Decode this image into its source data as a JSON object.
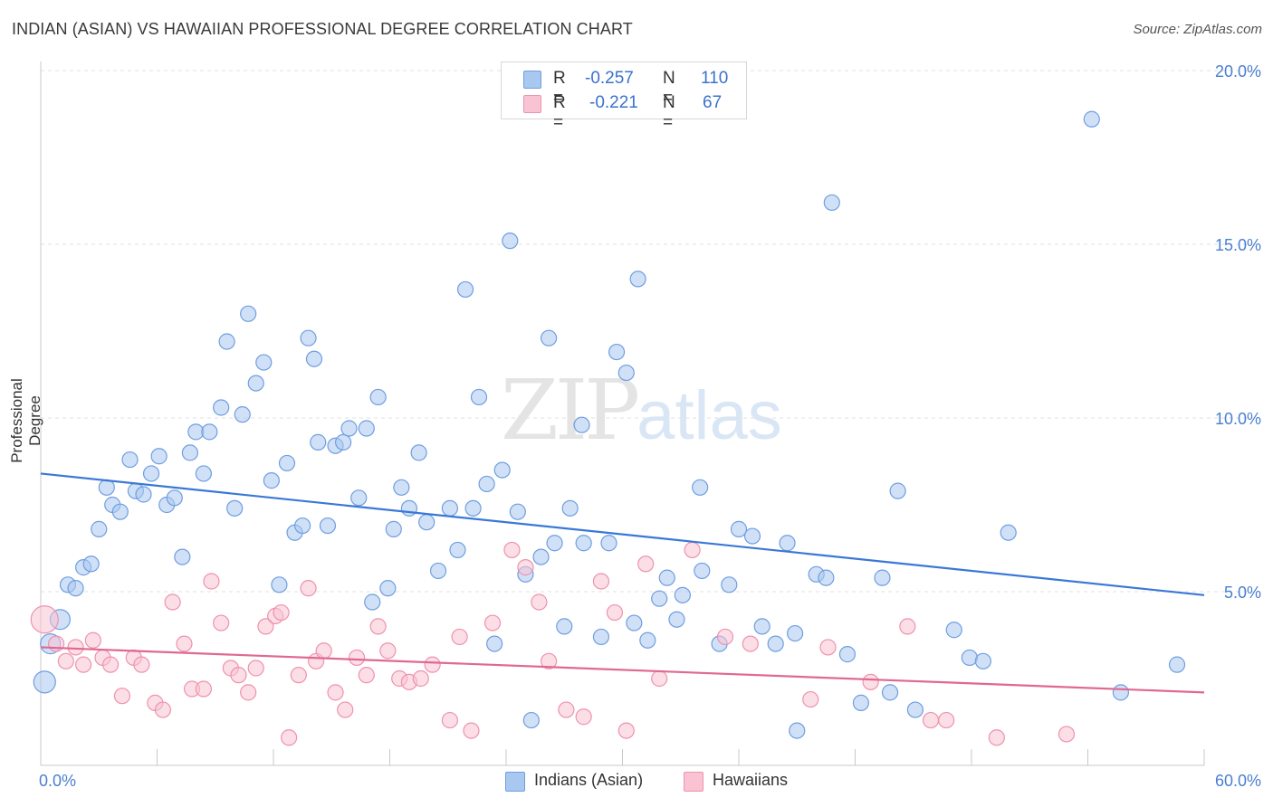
{
  "title": "INDIAN (ASIAN) VS HAWAIIAN PROFESSIONAL DEGREE CORRELATION CHART",
  "source": "Source: ZipAtlas.com",
  "watermark": {
    "zip": "ZIP",
    "atlas": "atlas"
  },
  "legend": {
    "r_label": "R =",
    "n_label": "N =",
    "rows": [
      {
        "r": "-0.257",
        "n": "110",
        "color": "#a9c8f0",
        "border": "#6f9ee0"
      },
      {
        "r": "-0.221",
        "n": "67",
        "color": "#f9c3d3",
        "border": "#ee92ae"
      }
    ]
  },
  "bottom_legend": [
    {
      "label": "Indians (Asian)",
      "color": "#a9c8f0",
      "border": "#6f9ee0"
    },
    {
      "label": "Hawaiians",
      "color": "#f9c3d3",
      "border": "#ee92ae"
    }
  ],
  "chart_data": {
    "type": "scatter",
    "title": "INDIAN (ASIAN) VS HAWAIIAN PROFESSIONAL DEGREE CORRELATION CHART",
    "xlabel": "",
    "ylabel": "Professional Degree",
    "xlim": [
      0,
      60
    ],
    "ylim": [
      0,
      20
    ],
    "x_tick_labels": [
      "0.0%",
      "60.0%"
    ],
    "y_ticks": [
      5,
      10,
      15,
      20
    ],
    "y_tick_labels": [
      "5.0%",
      "10.0%",
      "15.0%",
      "20.0%"
    ],
    "grid": true,
    "series": [
      {
        "name": "Indians (Asian)",
        "color": "#6f9ee0",
        "fill": "#a9c8f0",
        "trend": {
          "x": [
            0,
            60
          ],
          "y": [
            8.4,
            4.9
          ],
          "color": "#3a78d6"
        },
        "points": [
          [
            0.2,
            2.4
          ],
          [
            0.5,
            3.5
          ],
          [
            1.0,
            4.2
          ],
          [
            1.4,
            5.2
          ],
          [
            1.8,
            5.1
          ],
          [
            2.2,
            5.7
          ],
          [
            2.6,
            5.8
          ],
          [
            3.0,
            6.8
          ],
          [
            3.4,
            8.0
          ],
          [
            3.7,
            7.5
          ],
          [
            4.1,
            7.3
          ],
          [
            4.6,
            8.8
          ],
          [
            4.9,
            7.9
          ],
          [
            5.3,
            7.8
          ],
          [
            5.7,
            8.4
          ],
          [
            6.1,
            8.9
          ],
          [
            6.5,
            7.5
          ],
          [
            6.9,
            7.7
          ],
          [
            7.3,
            6.0
          ],
          [
            7.7,
            9.0
          ],
          [
            8.0,
            9.6
          ],
          [
            8.4,
            8.4
          ],
          [
            8.7,
            9.6
          ],
          [
            9.3,
            10.3
          ],
          [
            9.6,
            12.2
          ],
          [
            10.0,
            7.4
          ],
          [
            10.4,
            10.1
          ],
          [
            10.7,
            13.0
          ],
          [
            11.1,
            11.0
          ],
          [
            11.5,
            11.6
          ],
          [
            11.9,
            8.2
          ],
          [
            12.3,
            5.2
          ],
          [
            12.7,
            8.7
          ],
          [
            13.1,
            6.7
          ],
          [
            13.5,
            6.9
          ],
          [
            13.8,
            12.3
          ],
          [
            14.1,
            11.7
          ],
          [
            14.3,
            9.3
          ],
          [
            14.8,
            6.9
          ],
          [
            15.2,
            9.2
          ],
          [
            15.6,
            9.3
          ],
          [
            15.9,
            9.7
          ],
          [
            16.4,
            7.7
          ],
          [
            16.8,
            9.7
          ],
          [
            17.1,
            4.7
          ],
          [
            17.4,
            10.6
          ],
          [
            17.9,
            5.1
          ],
          [
            18.2,
            6.8
          ],
          [
            18.6,
            8.0
          ],
          [
            19.0,
            7.4
          ],
          [
            19.5,
            9.0
          ],
          [
            19.9,
            7.0
          ],
          [
            20.5,
            5.6
          ],
          [
            21.1,
            7.4
          ],
          [
            21.5,
            6.2
          ],
          [
            21.9,
            13.7
          ],
          [
            22.3,
            7.4
          ],
          [
            22.6,
            10.6
          ],
          [
            23.0,
            8.1
          ],
          [
            23.4,
            3.5
          ],
          [
            23.8,
            8.5
          ],
          [
            24.2,
            15.1
          ],
          [
            24.6,
            7.3
          ],
          [
            25.0,
            5.5
          ],
          [
            25.3,
            1.3
          ],
          [
            25.8,
            6.0
          ],
          [
            26.2,
            12.3
          ],
          [
            26.5,
            6.4
          ],
          [
            27.0,
            4.0
          ],
          [
            27.3,
            7.4
          ],
          [
            27.9,
            9.8
          ],
          [
            28.0,
            6.4
          ],
          [
            28.9,
            3.7
          ],
          [
            29.3,
            6.4
          ],
          [
            29.7,
            11.9
          ],
          [
            30.2,
            11.3
          ],
          [
            30.6,
            4.1
          ],
          [
            30.8,
            14.0
          ],
          [
            31.3,
            3.6
          ],
          [
            31.9,
            4.8
          ],
          [
            32.3,
            5.4
          ],
          [
            32.8,
            4.2
          ],
          [
            33.1,
            4.9
          ],
          [
            34.0,
            8.0
          ],
          [
            34.1,
            5.6
          ],
          [
            35.0,
            3.5
          ],
          [
            35.5,
            5.2
          ],
          [
            36.0,
            6.8
          ],
          [
            36.7,
            6.6
          ],
          [
            37.2,
            4.0
          ],
          [
            37.9,
            3.5
          ],
          [
            38.5,
            6.4
          ],
          [
            38.9,
            3.8
          ],
          [
            39.0,
            1.0
          ],
          [
            40.0,
            5.5
          ],
          [
            40.5,
            5.4
          ],
          [
            40.8,
            16.2
          ],
          [
            41.6,
            3.2
          ],
          [
            42.3,
            1.8
          ],
          [
            43.4,
            5.4
          ],
          [
            43.8,
            2.1
          ],
          [
            44.2,
            7.9
          ],
          [
            45.1,
            1.6
          ],
          [
            47.1,
            3.9
          ],
          [
            47.9,
            3.1
          ],
          [
            48.6,
            3.0
          ],
          [
            49.9,
            6.7
          ],
          [
            54.2,
            18.6
          ],
          [
            55.7,
            2.1
          ],
          [
            58.6,
            2.9
          ]
        ]
      },
      {
        "name": "Hawaiians",
        "color": "#ee92ae",
        "fill": "#f9c3d3",
        "trend": {
          "x": [
            0,
            60
          ],
          "y": [
            3.4,
            2.1
          ],
          "color": "#e06892"
        },
        "points": [
          [
            0.2,
            4.2
          ],
          [
            0.8,
            3.5
          ],
          [
            1.3,
            3.0
          ],
          [
            1.8,
            3.4
          ],
          [
            2.2,
            2.9
          ],
          [
            2.7,
            3.6
          ],
          [
            3.2,
            3.1
          ],
          [
            3.6,
            2.9
          ],
          [
            4.2,
            2.0
          ],
          [
            4.8,
            3.1
          ],
          [
            5.2,
            2.9
          ],
          [
            5.9,
            1.8
          ],
          [
            6.3,
            1.6
          ],
          [
            6.8,
            4.7
          ],
          [
            7.4,
            3.5
          ],
          [
            7.8,
            2.2
          ],
          [
            8.4,
            2.2
          ],
          [
            8.8,
            5.3
          ],
          [
            9.3,
            4.1
          ],
          [
            9.8,
            2.8
          ],
          [
            10.2,
            2.6
          ],
          [
            10.7,
            2.1
          ],
          [
            11.1,
            2.8
          ],
          [
            11.6,
            4.0
          ],
          [
            12.1,
            4.3
          ],
          [
            12.4,
            4.4
          ],
          [
            12.8,
            0.8
          ],
          [
            13.3,
            2.6
          ],
          [
            13.8,
            5.1
          ],
          [
            14.2,
            3.0
          ],
          [
            14.6,
            3.3
          ],
          [
            15.2,
            2.1
          ],
          [
            15.7,
            1.6
          ],
          [
            16.3,
            3.1
          ],
          [
            16.8,
            2.6
          ],
          [
            17.4,
            4.0
          ],
          [
            17.9,
            3.3
          ],
          [
            18.5,
            2.5
          ],
          [
            19.0,
            2.4
          ],
          [
            19.6,
            2.5
          ],
          [
            20.2,
            2.9
          ],
          [
            21.1,
            1.3
          ],
          [
            21.6,
            3.7
          ],
          [
            22.2,
            1.0
          ],
          [
            23.3,
            4.1
          ],
          [
            24.3,
            6.2
          ],
          [
            25.0,
            5.7
          ],
          [
            25.7,
            4.7
          ],
          [
            26.2,
            3.0
          ],
          [
            27.1,
            1.6
          ],
          [
            28.0,
            1.4
          ],
          [
            28.9,
            5.3
          ],
          [
            29.6,
            4.4
          ],
          [
            30.2,
            1.0
          ],
          [
            31.2,
            5.8
          ],
          [
            31.9,
            2.5
          ],
          [
            33.6,
            6.2
          ],
          [
            35.3,
            3.7
          ],
          [
            36.6,
            3.5
          ],
          [
            39.7,
            1.9
          ],
          [
            40.6,
            3.4
          ],
          [
            42.8,
            2.4
          ],
          [
            44.7,
            4.0
          ],
          [
            45.9,
            1.3
          ],
          [
            46.7,
            1.3
          ],
          [
            49.3,
            0.8
          ],
          [
            52.9,
            0.9
          ]
        ]
      }
    ]
  }
}
